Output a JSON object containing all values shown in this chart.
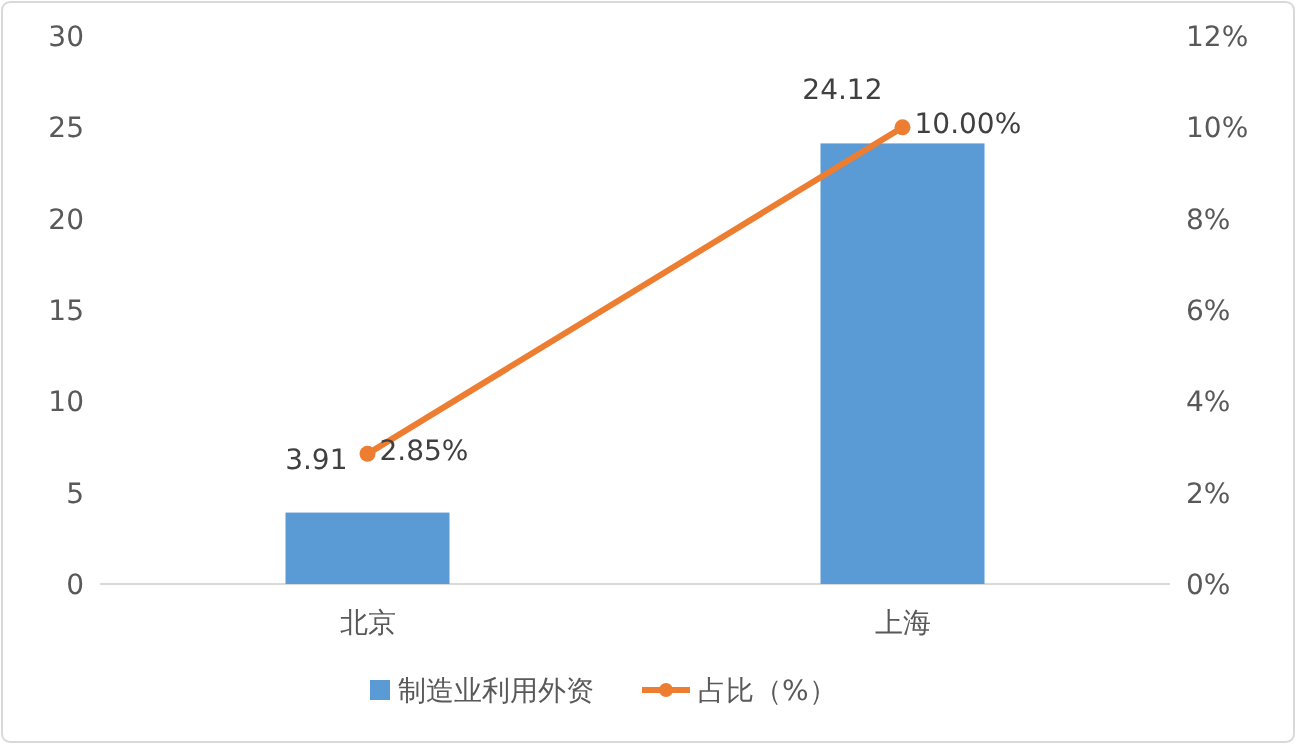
{
  "chart_data": {
    "type": "bar",
    "categories": [
      "北京",
      "上海"
    ],
    "series": [
      {
        "name": "制造业利用外资",
        "color": "#5b9bd5",
        "values": [
          3.91,
          24.12
        ],
        "value_labels": [
          "3.91",
          "24.12"
        ]
      },
      {
        "name": "占比（%）",
        "type": "line",
        "axis": "y2",
        "color": "#ed7d31",
        "values": [
          2.85,
          10.0
        ],
        "value_labels": [
          "2.85%",
          "10.00%"
        ]
      }
    ],
    "ylim": [
      0,
      30
    ],
    "yticks": [
      0,
      5,
      10,
      15,
      20,
      25,
      30
    ],
    "y2lim": [
      0,
      12
    ],
    "y2ticks": [
      {
        "value": 0,
        "label": "0%"
      },
      {
        "value": 2,
        "label": "2%"
      },
      {
        "value": 4,
        "label": "4%"
      },
      {
        "value": 6,
        "label": "6%"
      },
      {
        "value": 8,
        "label": "8%"
      },
      {
        "value": 10,
        "label": "10%"
      },
      {
        "value": 12,
        "label": "12%"
      }
    ],
    "grid": false,
    "legend": "bottom",
    "marker": "circle",
    "line_style": "solid"
  }
}
